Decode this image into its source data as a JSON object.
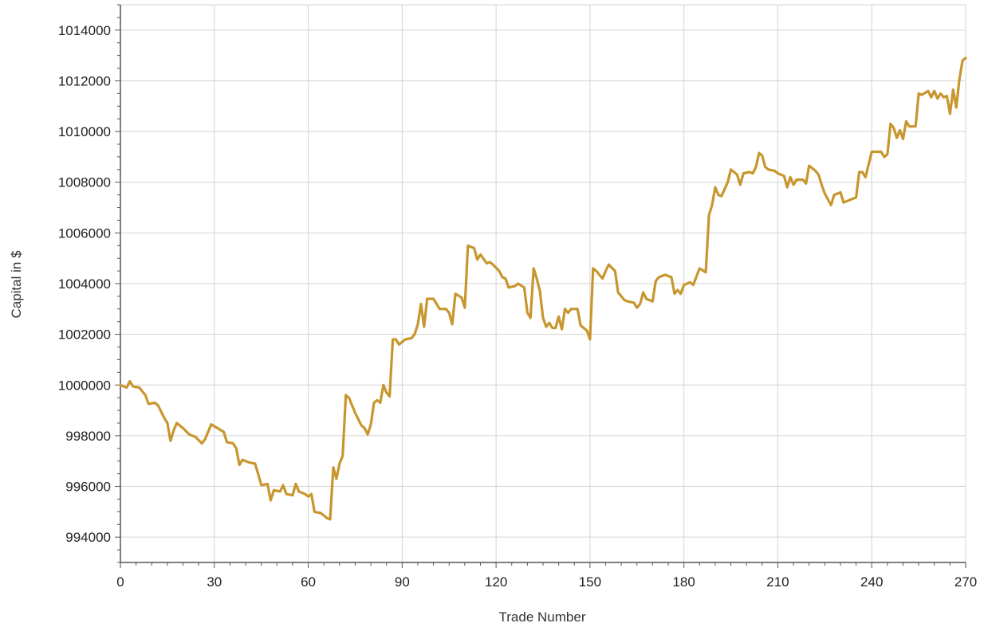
{
  "chart_data": {
    "type": "line",
    "title": "",
    "xlabel": "Trade Number",
    "ylabel": "Capital in $",
    "xlim": [
      0,
      270
    ],
    "ylim": [
      993000,
      1015000
    ],
    "x_ticks": [
      0,
      30,
      60,
      90,
      120,
      150,
      180,
      210,
      240,
      270
    ],
    "y_ticks": [
      994000,
      996000,
      998000,
      1000000,
      1002000,
      1004000,
      1006000,
      1008000,
      1010000,
      1012000,
      1014000
    ],
    "grid": true,
    "legend": "none",
    "series": [
      {
        "color": "#c8962e",
        "points": [
          [
            0,
            1000000
          ],
          [
            2,
            999900
          ],
          [
            3,
            1000150
          ],
          [
            4,
            999950
          ],
          [
            6,
            999900
          ],
          [
            8,
            999600
          ],
          [
            9,
            999250
          ],
          [
            11,
            999300
          ],
          [
            12,
            999200
          ],
          [
            14,
            998700
          ],
          [
            15,
            998500
          ],
          [
            16,
            997800
          ],
          [
            17,
            998200
          ],
          [
            18,
            998500
          ],
          [
            20,
            998300
          ],
          [
            22,
            998050
          ],
          [
            24,
            997950
          ],
          [
            26,
            997700
          ],
          [
            27,
            997850
          ],
          [
            29,
            998450
          ],
          [
            31,
            998300
          ],
          [
            33,
            998150
          ],
          [
            34,
            997750
          ],
          [
            36,
            997700
          ],
          [
            37,
            997500
          ],
          [
            38,
            996850
          ],
          [
            39,
            997050
          ],
          [
            41,
            996950
          ],
          [
            43,
            996900
          ],
          [
            44,
            996500
          ],
          [
            45,
            996050
          ],
          [
            47,
            996100
          ],
          [
            48,
            995450
          ],
          [
            49,
            995850
          ],
          [
            51,
            995800
          ],
          [
            52,
            996050
          ],
          [
            53,
            995700
          ],
          [
            55,
            995650
          ],
          [
            56,
            996100
          ],
          [
            57,
            995800
          ],
          [
            59,
            995700
          ],
          [
            60,
            995600
          ],
          [
            61,
            995700
          ],
          [
            62,
            995000
          ],
          [
            64,
            994950
          ],
          [
            65,
            994850
          ],
          [
            66,
            994750
          ],
          [
            67,
            994700
          ],
          [
            68,
            996750
          ],
          [
            69,
            996300
          ],
          [
            70,
            996900
          ],
          [
            71,
            997200
          ],
          [
            72,
            999600
          ],
          [
            73,
            999500
          ],
          [
            75,
            998900
          ],
          [
            77,
            998400
          ],
          [
            78,
            998300
          ],
          [
            79,
            998050
          ],
          [
            80,
            998450
          ],
          [
            81,
            999300
          ],
          [
            82,
            999400
          ],
          [
            83,
            999300
          ],
          [
            84,
            1000000
          ],
          [
            85,
            999700
          ],
          [
            86,
            999550
          ],
          [
            87,
            1001800
          ],
          [
            88,
            1001800
          ],
          [
            89,
            1001600
          ],
          [
            91,
            1001800
          ],
          [
            93,
            1001850
          ],
          [
            94,
            1002000
          ],
          [
            95,
            1002400
          ],
          [
            96,
            1003200
          ],
          [
            97,
            1002300
          ],
          [
            98,
            1003400
          ],
          [
            100,
            1003400
          ],
          [
            101,
            1003200
          ],
          [
            102,
            1003000
          ],
          [
            104,
            1003000
          ],
          [
            105,
            1002850
          ],
          [
            106,
            1002400
          ],
          [
            107,
            1003600
          ],
          [
            109,
            1003450
          ],
          [
            110,
            1003050
          ],
          [
            111,
            1005500
          ],
          [
            113,
            1005400
          ],
          [
            114,
            1004950
          ],
          [
            115,
            1005150
          ],
          [
            117,
            1004800
          ],
          [
            118,
            1004850
          ],
          [
            119,
            1004750
          ],
          [
            121,
            1004500
          ],
          [
            122,
            1004250
          ],
          [
            123,
            1004200
          ],
          [
            124,
            1003850
          ],
          [
            126,
            1003900
          ],
          [
            127,
            1004000
          ],
          [
            129,
            1003850
          ],
          [
            130,
            1002850
          ],
          [
            131,
            1002650
          ],
          [
            132,
            1004600
          ],
          [
            133,
            1004200
          ],
          [
            134,
            1003700
          ],
          [
            135,
            1002650
          ],
          [
            136,
            1002300
          ],
          [
            137,
            1002450
          ],
          [
            138,
            1002250
          ],
          [
            139,
            1002250
          ],
          [
            140,
            1002700
          ],
          [
            141,
            1002200
          ],
          [
            142,
            1003000
          ],
          [
            143,
            1002850
          ],
          [
            144,
            1003000
          ],
          [
            146,
            1003000
          ],
          [
            147,
            1002350
          ],
          [
            149,
            1002150
          ],
          [
            150,
            1001800
          ],
          [
            151,
            1004600
          ],
          [
            152,
            1004500
          ],
          [
            154,
            1004200
          ],
          [
            155,
            1004500
          ],
          [
            156,
            1004750
          ],
          [
            158,
            1004500
          ],
          [
            159,
            1003650
          ],
          [
            161,
            1003350
          ],
          [
            162,
            1003300
          ],
          [
            164,
            1003250
          ],
          [
            165,
            1003050
          ],
          [
            166,
            1003200
          ],
          [
            167,
            1003650
          ],
          [
            168,
            1003400
          ],
          [
            170,
            1003300
          ],
          [
            171,
            1004100
          ],
          [
            172,
            1004250
          ],
          [
            174,
            1004350
          ],
          [
            176,
            1004250
          ],
          [
            177,
            1003600
          ],
          [
            178,
            1003750
          ],
          [
            179,
            1003600
          ],
          [
            180,
            1003950
          ],
          [
            182,
            1004050
          ],
          [
            183,
            1003950
          ],
          [
            185,
            1004600
          ],
          [
            187,
            1004450
          ],
          [
            188,
            1006700
          ],
          [
            189,
            1007100
          ],
          [
            190,
            1007800
          ],
          [
            191,
            1007500
          ],
          [
            192,
            1007450
          ],
          [
            194,
            1008000
          ],
          [
            195,
            1008500
          ],
          [
            197,
            1008300
          ],
          [
            198,
            1007900
          ],
          [
            199,
            1008350
          ],
          [
            201,
            1008400
          ],
          [
            202,
            1008350
          ],
          [
            203,
            1008600
          ],
          [
            204,
            1009150
          ],
          [
            205,
            1009050
          ],
          [
            206,
            1008600
          ],
          [
            207,
            1008500
          ],
          [
            209,
            1008450
          ],
          [
            210,
            1008350
          ],
          [
            212,
            1008250
          ],
          [
            213,
            1007800
          ],
          [
            214,
            1008200
          ],
          [
            215,
            1007900
          ],
          [
            216,
            1008100
          ],
          [
            218,
            1008100
          ],
          [
            219,
            1007950
          ],
          [
            220,
            1008650
          ],
          [
            222,
            1008450
          ],
          [
            223,
            1008300
          ],
          [
            224,
            1007900
          ],
          [
            225,
            1007550
          ],
          [
            227,
            1007100
          ],
          [
            228,
            1007500
          ],
          [
            230,
            1007600
          ],
          [
            231,
            1007200
          ],
          [
            233,
            1007300
          ],
          [
            235,
            1007400
          ],
          [
            236,
            1008400
          ],
          [
            237,
            1008400
          ],
          [
            238,
            1008200
          ],
          [
            239,
            1008700
          ],
          [
            240,
            1009200
          ],
          [
            242,
            1009200
          ],
          [
            243,
            1009200
          ],
          [
            244,
            1009000
          ],
          [
            245,
            1009100
          ],
          [
            246,
            1010300
          ],
          [
            247,
            1010150
          ],
          [
            248,
            1009750
          ],
          [
            249,
            1010050
          ],
          [
            250,
            1009700
          ],
          [
            251,
            1010400
          ],
          [
            252,
            1010200
          ],
          [
            254,
            1010200
          ],
          [
            255,
            1011500
          ],
          [
            256,
            1011450
          ],
          [
            258,
            1011600
          ],
          [
            259,
            1011350
          ],
          [
            260,
            1011600
          ],
          [
            261,
            1011300
          ],
          [
            262,
            1011500
          ],
          [
            263,
            1011350
          ],
          [
            264,
            1011400
          ],
          [
            265,
            1010700
          ],
          [
            266,
            1011650
          ],
          [
            267,
            1010950
          ],
          [
            268,
            1012050
          ],
          [
            269,
            1012800
          ],
          [
            270,
            1012900
          ]
        ]
      }
    ]
  }
}
